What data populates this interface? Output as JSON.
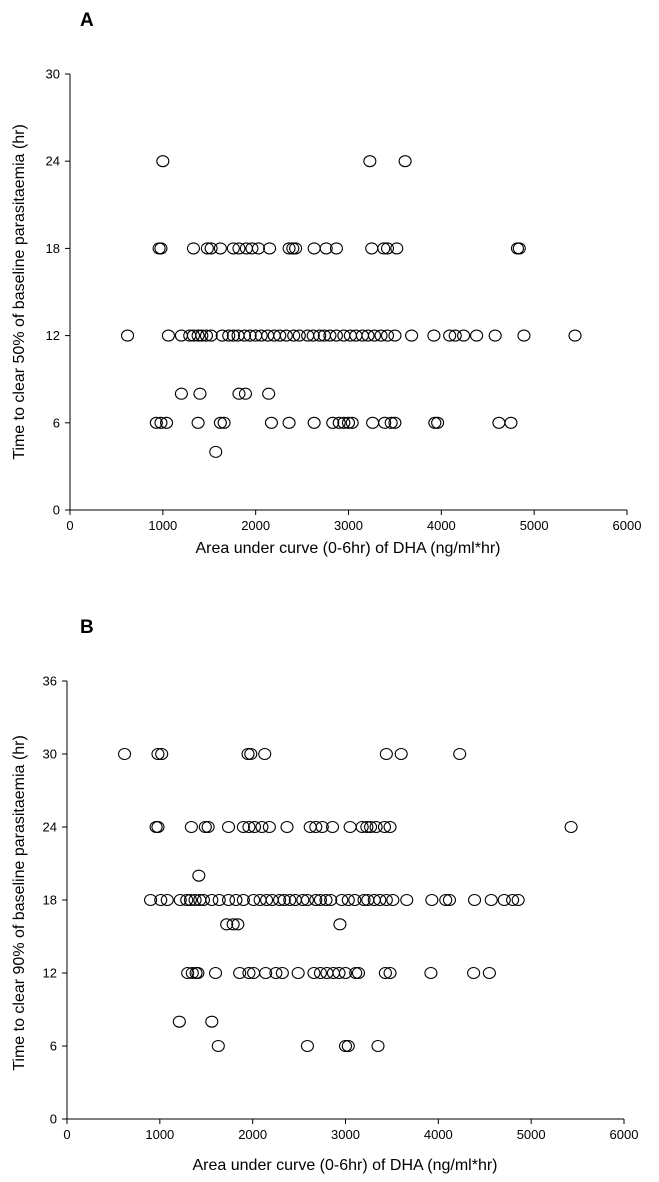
{
  "chart_data": [
    {
      "panel": "A",
      "type": "scatter",
      "title": "",
      "xlabel": "Area under curve (0-6hr) of DHA (ng/ml*hr)",
      "ylabel": "Time to clear 50% of baseline parasitaemia (hr)",
      "xlim": [
        0,
        6000
      ],
      "ylim": [
        0,
        30
      ],
      "xticks": [
        "0",
        "1000",
        "2000",
        "3000",
        "4000",
        "5000",
        "6000"
      ],
      "yticks": [
        "0",
        "6",
        "12",
        "18",
        "24",
        "30"
      ],
      "grid": false,
      "legend": "none",
      "marker": "open-circle",
      "points": [
        [
          1000,
          24
        ],
        [
          3230,
          24
        ],
        [
          3610,
          24
        ],
        [
          960,
          18
        ],
        [
          980,
          18
        ],
        [
          1330,
          18
        ],
        [
          1480,
          18
        ],
        [
          1520,
          18
        ],
        [
          1620,
          18
        ],
        [
          1760,
          18
        ],
        [
          1820,
          18
        ],
        [
          1900,
          18
        ],
        [
          1960,
          18
        ],
        [
          2030,
          18
        ],
        [
          2150,
          18
        ],
        [
          2360,
          18
        ],
        [
          2400,
          18
        ],
        [
          2430,
          18
        ],
        [
          2630,
          18
        ],
        [
          2760,
          18
        ],
        [
          2870,
          18
        ],
        [
          3250,
          18
        ],
        [
          3380,
          18
        ],
        [
          3420,
          18
        ],
        [
          3520,
          18
        ],
        [
          4820,
          18
        ],
        [
          4840,
          18
        ],
        [
          620,
          12
        ],
        [
          1060,
          12
        ],
        [
          1200,
          12
        ],
        [
          1290,
          12
        ],
        [
          1330,
          12
        ],
        [
          1380,
          12
        ],
        [
          1420,
          12
        ],
        [
          1470,
          12
        ],
        [
          1520,
          12
        ],
        [
          1640,
          12
        ],
        [
          1710,
          12
        ],
        [
          1760,
          12
        ],
        [
          1810,
          12
        ],
        [
          1880,
          12
        ],
        [
          1940,
          12
        ],
        [
          2000,
          12
        ],
        [
          2060,
          12
        ],
        [
          2130,
          12
        ],
        [
          2200,
          12
        ],
        [
          2260,
          12
        ],
        [
          2330,
          12
        ],
        [
          2410,
          12
        ],
        [
          2470,
          12
        ],
        [
          2560,
          12
        ],
        [
          2620,
          12
        ],
        [
          2690,
          12
        ],
        [
          2740,
          12
        ],
        [
          2800,
          12
        ],
        [
          2870,
          12
        ],
        [
          2950,
          12
        ],
        [
          3020,
          12
        ],
        [
          3080,
          12
        ],
        [
          3150,
          12
        ],
        [
          3210,
          12
        ],
        [
          3280,
          12
        ],
        [
          3350,
          12
        ],
        [
          3420,
          12
        ],
        [
          3500,
          12
        ],
        [
          3680,
          12
        ],
        [
          3920,
          12
        ],
        [
          4090,
          12
        ],
        [
          4150,
          12
        ],
        [
          4240,
          12
        ],
        [
          4380,
          12
        ],
        [
          4580,
          12
        ],
        [
          4890,
          12
        ],
        [
          5440,
          12
        ],
        [
          1200,
          8
        ],
        [
          1400,
          8
        ],
        [
          1820,
          8
        ],
        [
          1890,
          8
        ],
        [
          2140,
          8
        ],
        [
          930,
          6
        ],
        [
          980,
          6
        ],
        [
          1040,
          6
        ],
        [
          1380,
          6
        ],
        [
          1620,
          6
        ],
        [
          1660,
          6
        ],
        [
          2170,
          6
        ],
        [
          2360,
          6
        ],
        [
          2630,
          6
        ],
        [
          2830,
          6
        ],
        [
          2900,
          6
        ],
        [
          2950,
          6
        ],
        [
          3000,
          6
        ],
        [
          3040,
          6
        ],
        [
          3260,
          6
        ],
        [
          3390,
          6
        ],
        [
          3460,
          6
        ],
        [
          3500,
          6
        ],
        [
          3930,
          6
        ],
        [
          3960,
          6
        ],
        [
          4620,
          6
        ],
        [
          4750,
          6
        ],
        [
          1570,
          4
        ]
      ]
    },
    {
      "panel": "B",
      "type": "scatter",
      "title": "",
      "xlabel": "Area under curve (0-6hr) of DHA (ng/ml*hr)",
      "ylabel": "Time to clear 90% of baseline parasitaemia (hr)",
      "xlim": [
        0,
        6000
      ],
      "ylim": [
        0,
        36
      ],
      "xticks": [
        "0",
        "1000",
        "2000",
        "3000",
        "4000",
        "5000",
        "6000"
      ],
      "yticks": [
        "0",
        "6",
        "12",
        "18",
        "24",
        "30",
        "36"
      ],
      "grid": false,
      "legend": "none",
      "marker": "open-circle",
      "points": [
        [
          620,
          30
        ],
        [
          980,
          30
        ],
        [
          1020,
          30
        ],
        [
          1950,
          30
        ],
        [
          1980,
          30
        ],
        [
          2130,
          30
        ],
        [
          3440,
          30
        ],
        [
          3600,
          30
        ],
        [
          4230,
          30
        ],
        [
          960,
          24
        ],
        [
          980,
          24
        ],
        [
          1340,
          24
        ],
        [
          1490,
          24
        ],
        [
          1520,
          24
        ],
        [
          1740,
          24
        ],
        [
          1900,
          24
        ],
        [
          1960,
          24
        ],
        [
          2020,
          24
        ],
        [
          2100,
          24
        ],
        [
          2180,
          24
        ],
        [
          2370,
          24
        ],
        [
          2620,
          24
        ],
        [
          2680,
          24
        ],
        [
          2750,
          24
        ],
        [
          2860,
          24
        ],
        [
          3050,
          24
        ],
        [
          3180,
          24
        ],
        [
          3230,
          24
        ],
        [
          3270,
          24
        ],
        [
          3330,
          24
        ],
        [
          3420,
          24
        ],
        [
          3480,
          24
        ],
        [
          5430,
          24
        ],
        [
          1420,
          20
        ],
        [
          900,
          18
        ],
        [
          1010,
          18
        ],
        [
          1080,
          18
        ],
        [
          1220,
          18
        ],
        [
          1290,
          18
        ],
        [
          1330,
          18
        ],
        [
          1380,
          18
        ],
        [
          1430,
          18
        ],
        [
          1470,
          18
        ],
        [
          1560,
          18
        ],
        [
          1640,
          18
        ],
        [
          1740,
          18
        ],
        [
          1820,
          18
        ],
        [
          1900,
          18
        ],
        [
          2010,
          18
        ],
        [
          2080,
          18
        ],
        [
          2150,
          18
        ],
        [
          2210,
          18
        ],
        [
          2290,
          18
        ],
        [
          2340,
          18
        ],
        [
          2400,
          18
        ],
        [
          2460,
          18
        ],
        [
          2540,
          18
        ],
        [
          2590,
          18
        ],
        [
          2680,
          18
        ],
        [
          2730,
          18
        ],
        [
          2790,
          18
        ],
        [
          2840,
          18
        ],
        [
          2960,
          18
        ],
        [
          3030,
          18
        ],
        [
          3100,
          18
        ],
        [
          3200,
          18
        ],
        [
          3240,
          18
        ],
        [
          3310,
          18
        ],
        [
          3370,
          18
        ],
        [
          3440,
          18
        ],
        [
          3510,
          18
        ],
        [
          3660,
          18
        ],
        [
          3930,
          18
        ],
        [
          4080,
          18
        ],
        [
          4120,
          18
        ],
        [
          4390,
          18
        ],
        [
          4570,
          18
        ],
        [
          4710,
          18
        ],
        [
          4800,
          18
        ],
        [
          4860,
          18
        ],
        [
          1720,
          16
        ],
        [
          1790,
          16
        ],
        [
          1840,
          16
        ],
        [
          2940,
          16
        ],
        [
          1300,
          12
        ],
        [
          1350,
          12
        ],
        [
          1390,
          12
        ],
        [
          1410,
          12
        ],
        [
          1600,
          12
        ],
        [
          1860,
          12
        ],
        [
          1960,
          12
        ],
        [
          2010,
          12
        ],
        [
          2140,
          12
        ],
        [
          2250,
          12
        ],
        [
          2320,
          12
        ],
        [
          2490,
          12
        ],
        [
          2660,
          12
        ],
        [
          2730,
          12
        ],
        [
          2800,
          12
        ],
        [
          2870,
          12
        ],
        [
          2930,
          12
        ],
        [
          3000,
          12
        ],
        [
          3110,
          12
        ],
        [
          3140,
          12
        ],
        [
          3430,
          12
        ],
        [
          3480,
          12
        ],
        [
          3920,
          12
        ],
        [
          4380,
          12
        ],
        [
          4550,
          12
        ],
        [
          1210,
          8
        ],
        [
          1560,
          8
        ],
        [
          1630,
          6
        ],
        [
          2590,
          6
        ],
        [
          3000,
          6
        ],
        [
          3030,
          6
        ],
        [
          3350,
          6
        ]
      ]
    }
  ]
}
